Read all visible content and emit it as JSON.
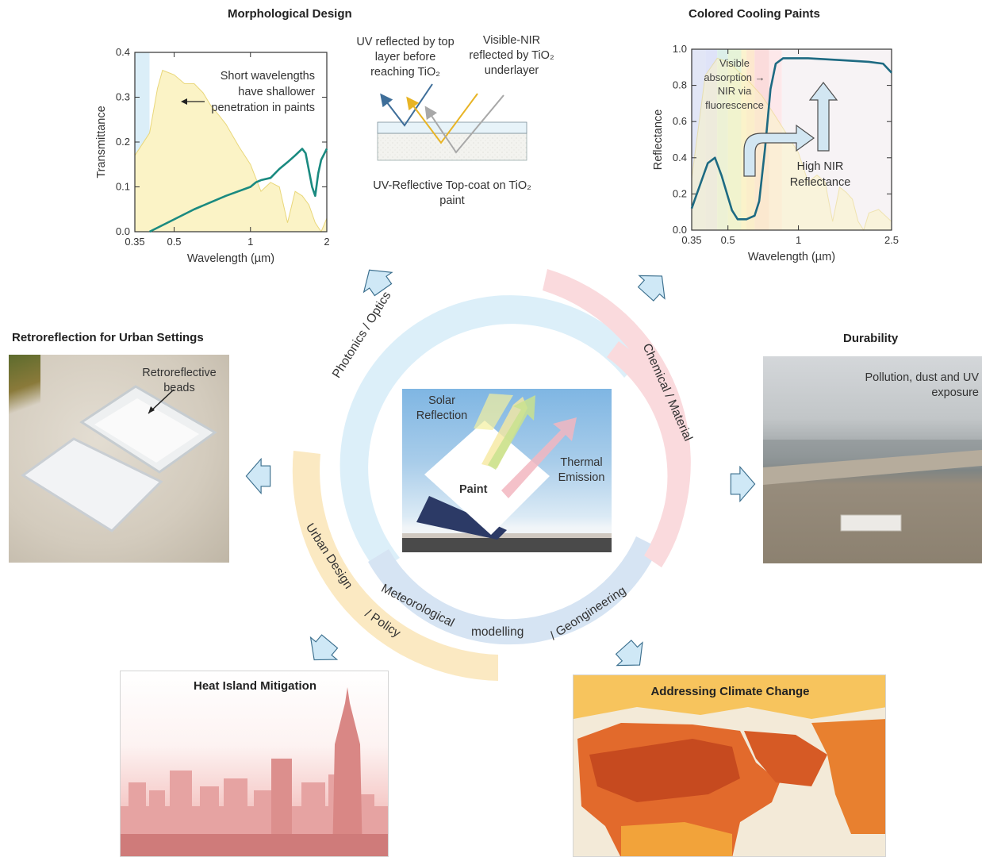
{
  "sections": {
    "morph": {
      "title": "Morphological Design",
      "annotation": "Short wavelengths have shallower penetration in paints",
      "uv_note": "UV reflected by top layer before reaching TiO₂",
      "vis_note": "Visible-NIR reflected by TiO₂ underlayer",
      "topcoat_caption": "UV-Reflective Top-coat on TiO₂ paint"
    },
    "colored": {
      "title": "Colored Cooling Paints",
      "vis_note": "Visible absorption → NIR via fluorescence",
      "nir_note": "High NIR Reflectance"
    },
    "retro": {
      "title": "Retroreflection for Urban Settings",
      "beads_label": "Retroreflective beads"
    },
    "durability": {
      "title": "Durability",
      "note": "Pollution, dust and UV exposure"
    },
    "heat": {
      "title": "Heat Island Mitigation"
    },
    "climate": {
      "title": "Addressing Climate Change"
    }
  },
  "center": {
    "solar_label": "Solar Reflection",
    "thermal_label": "Thermal Emission",
    "paint_label": "Paint"
  },
  "ring": {
    "photonics": "Photonics /  Optics",
    "chemical": "Chemical /  Material",
    "urban": "Urban Design",
    "policy": "/ Policy",
    "meteo": "Meteorological",
    "modelling": "modelling",
    "geo": "/ Geongineering"
  },
  "colors": {
    "teal_curve": "#1a8a80",
    "blue_curve": "#1d6a82",
    "spectrum_fill": "#fbf3c6",
    "ring_blue": "#dceff9",
    "ring_pink": "#f9d9dc",
    "ring_yellow": "#fbeac4",
    "ring_slate": "#d4e3f2",
    "arrow_fill": "#cfe8f6",
    "arrow_stroke": "#3b6f8e"
  },
  "chart_data": [
    {
      "type": "line",
      "title": "Morphological Design",
      "xlabel": "Wavelength (µm)",
      "ylabel": "Transmittance",
      "xscale": "log",
      "xlim": [
        0.35,
        2
      ],
      "ylim": [
        0,
        0.4
      ],
      "xticks": [
        "0.35",
        "0.5",
        "1",
        "2"
      ],
      "yticks": [
        "0.0",
        "0.1",
        "0.2",
        "0.3",
        "0.4"
      ],
      "series": [
        {
          "x": [
            0.4,
            0.6,
            0.8,
            1.0,
            1.05,
            1.1,
            1.2,
            1.3,
            1.4,
            1.5,
            1.6,
            1.65,
            1.75,
            1.8,
            1.85,
            1.9,
            2.0
          ],
          "y": [
            0.0,
            0.05,
            0.08,
            0.1,
            0.11,
            0.115,
            0.12,
            0.14,
            0.155,
            0.17,
            0.185,
            0.175,
            0.1,
            0.08,
            0.13,
            0.16,
            0.185
          ]
        }
      ],
      "solar_spectrum": {
        "x": [
          0.35,
          0.4,
          0.43,
          0.45,
          0.5,
          0.55,
          0.6,
          0.65,
          0.7,
          0.75,
          0.8,
          0.9,
          1.0,
          1.1,
          1.2,
          1.3,
          1.4,
          1.5,
          1.6,
          1.7,
          1.8,
          1.9,
          2.0
        ],
        "y": [
          0.17,
          0.22,
          0.32,
          0.36,
          0.35,
          0.33,
          0.33,
          0.31,
          0.28,
          0.26,
          0.24,
          0.19,
          0.15,
          0.09,
          0.11,
          0.1,
          0.02,
          0.09,
          0.08,
          0.06,
          0.02,
          0.0,
          0.03
        ]
      }
    },
    {
      "type": "line",
      "title": "Colored Cooling Paints",
      "xlabel": "Wavelength (µm)",
      "ylabel": "Reflectance",
      "xscale": "log",
      "xlim": [
        0.35,
        2.5
      ],
      "ylim": [
        0,
        1.0
      ],
      "xticks": [
        "0.35",
        "0.5",
        "1",
        "2.5"
      ],
      "yticks": [
        "0.0",
        "0.2",
        "0.4",
        "0.6",
        "0.8",
        "1.0"
      ],
      "series": [
        {
          "x": [
            0.35,
            0.38,
            0.41,
            0.44,
            0.47,
            0.52,
            0.55,
            0.6,
            0.65,
            0.68,
            0.72,
            0.76,
            0.8,
            0.86,
            0.95,
            1.1,
            1.5,
            2.0,
            2.3,
            2.5
          ],
          "y": [
            0.12,
            0.25,
            0.37,
            0.4,
            0.3,
            0.11,
            0.06,
            0.06,
            0.08,
            0.16,
            0.45,
            0.78,
            0.92,
            0.95,
            0.95,
            0.95,
            0.94,
            0.93,
            0.92,
            0.87
          ]
        }
      ],
      "solar_spectrum": {
        "x": [
          0.35,
          0.4,
          0.45,
          0.5,
          0.6,
          0.7,
          0.8,
          0.9,
          1.0,
          1.1,
          1.2,
          1.3,
          1.4,
          1.5,
          1.6,
          1.7,
          1.8,
          1.9,
          2.0,
          2.2,
          2.5
        ],
        "y": [
          0.3,
          0.9,
          1.0,
          0.98,
          0.88,
          0.78,
          0.66,
          0.55,
          0.45,
          0.28,
          0.32,
          0.28,
          0.05,
          0.25,
          0.22,
          0.18,
          0.05,
          0.0,
          0.1,
          0.12,
          0.05
        ]
      }
    }
  ]
}
